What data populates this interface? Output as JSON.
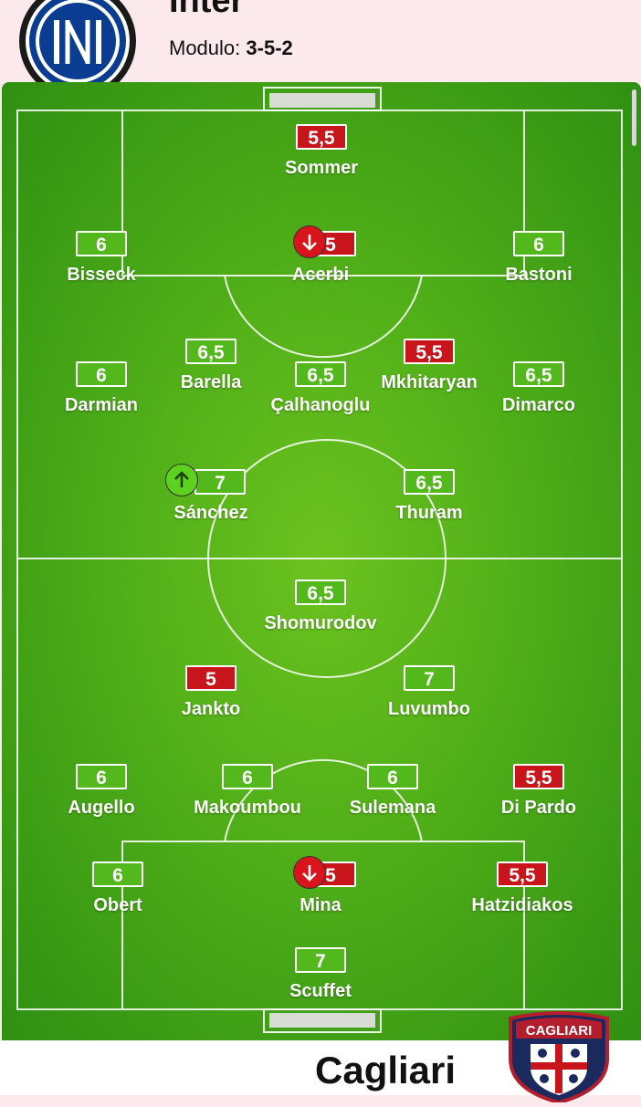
{
  "home": {
    "name": "Inter",
    "formation_label": "Modulo:",
    "formation": "3-5-2"
  },
  "away": {
    "name": "Cagliari",
    "logo_text": "CAGLIARI"
  },
  "colors": {
    "good_rating": "#52b81b",
    "bad_rating": "#c8141b",
    "sub_out": "#d9141c",
    "sub_in": "#5ed11f",
    "pitch": "#4fae18"
  },
  "home_players": [
    {
      "name": "Sommer",
      "rating": "5,5",
      "status": "bad"
    },
    {
      "name": "Bisseck",
      "rating": "6",
      "status": "good"
    },
    {
      "name": "Acerbi",
      "rating": "5",
      "status": "bad",
      "sub": "out"
    },
    {
      "name": "Bastoni",
      "rating": "6",
      "status": "good"
    },
    {
      "name": "Barella",
      "rating": "6,5",
      "status": "good"
    },
    {
      "name": "Mkhitaryan",
      "rating": "5,5",
      "status": "bad"
    },
    {
      "name": "Darmian",
      "rating": "6",
      "status": "good"
    },
    {
      "name": "Çalhanoglu",
      "rating": "6,5",
      "status": "good"
    },
    {
      "name": "Dimarco",
      "rating": "6,5",
      "status": "good"
    },
    {
      "name": "Sánchez",
      "rating": "7",
      "status": "good",
      "sub": "in"
    },
    {
      "name": "Thuram",
      "rating": "6,5",
      "status": "good"
    }
  ],
  "away_players": [
    {
      "name": "Shomurodov",
      "rating": "6,5",
      "status": "good"
    },
    {
      "name": "Jankto",
      "rating": "5",
      "status": "bad"
    },
    {
      "name": "Luvumbo",
      "rating": "7",
      "status": "good"
    },
    {
      "name": "Augello",
      "rating": "6",
      "status": "good"
    },
    {
      "name": "Makoumbou",
      "rating": "6",
      "status": "good"
    },
    {
      "name": "Sulemana",
      "rating": "6",
      "status": "good"
    },
    {
      "name": "Di Pardo",
      "rating": "5,5",
      "status": "bad"
    },
    {
      "name": "Obert",
      "rating": "6",
      "status": "good"
    },
    {
      "name": "Mina",
      "rating": "5",
      "status": "bad",
      "sub": "out"
    },
    {
      "name": "Hatzidiakos",
      "rating": "5,5",
      "status": "bad"
    },
    {
      "name": "Scuffet",
      "rating": "7",
      "status": "good"
    }
  ]
}
